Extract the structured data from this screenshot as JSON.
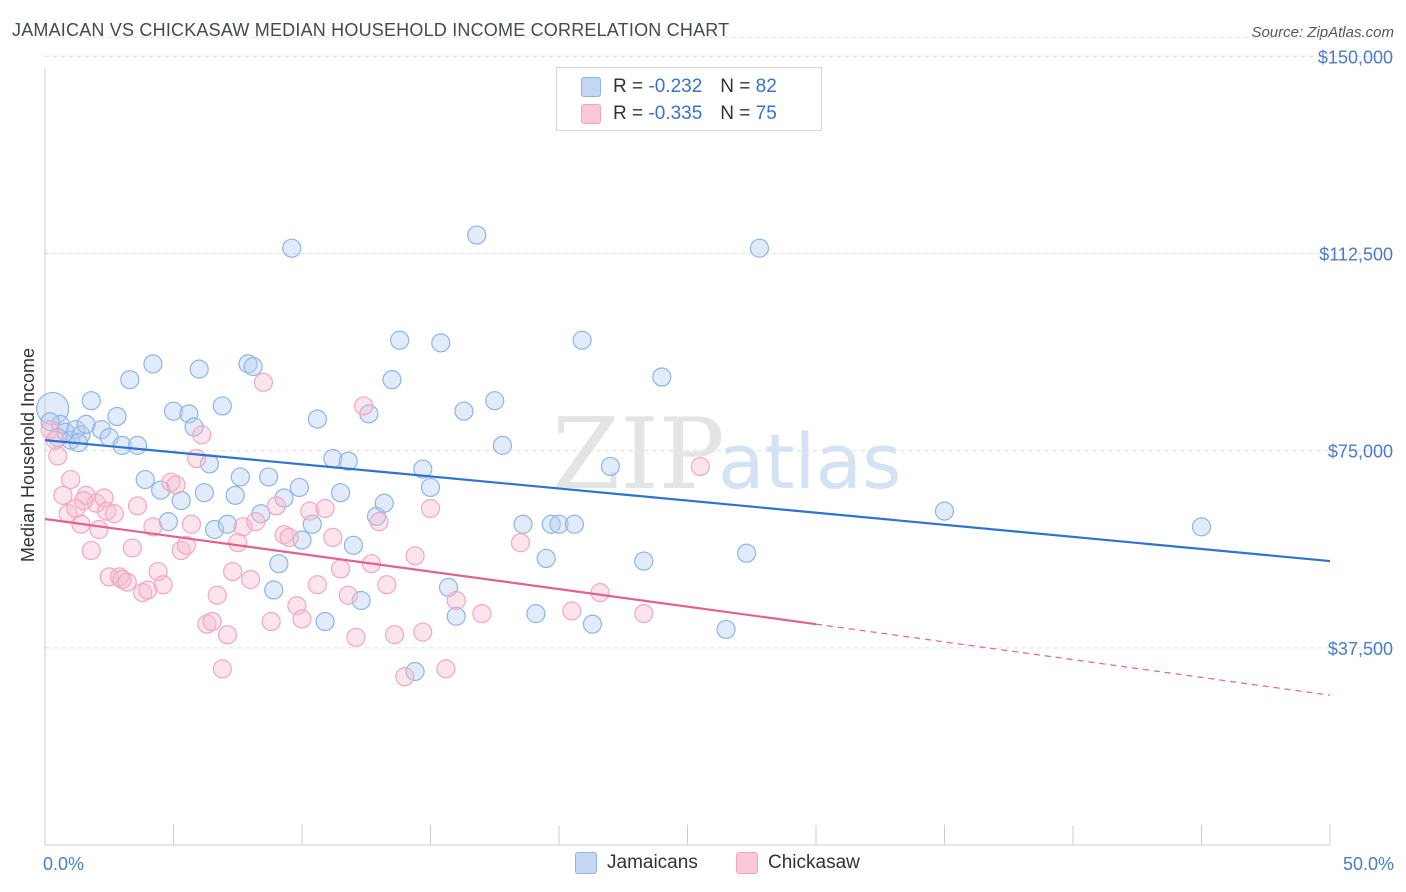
{
  "title": "JAMAICAN VS CHICKASAW MEDIAN HOUSEHOLD INCOME CORRELATION CHART",
  "source": "Source: ZipAtlas.com",
  "watermark": {
    "zip": "ZIP",
    "atlas": "atlas"
  },
  "legend": {
    "rows": [
      {
        "r_label": "R =",
        "r_value": "-0.232",
        "n_label": "N =",
        "n_value": "82"
      },
      {
        "r_label": "R =",
        "r_value": "-0.335",
        "n_label": "N =",
        "n_value": "75"
      }
    ]
  },
  "bottom_legend": {
    "jamaicans": "Jamaicans",
    "chickasaw": "Chickasaw"
  },
  "chart_data": {
    "type": "scatter",
    "title": "JAMAICAN VS CHICKASAW MEDIAN HOUSEHOLD INCOME CORRELATION CHART",
    "xlabel": "",
    "ylabel": "Median Household Income",
    "xlim": [
      0,
      50
    ],
    "ylim": [
      0,
      155000
    ],
    "x_tick_labels": [
      "0.0%",
      "50.0%"
    ],
    "y_tick_labels": [
      "$150,000",
      "$112,500",
      "$75,000",
      "$37,500"
    ],
    "y_tick_values": [
      150000,
      112500,
      75000,
      37500
    ],
    "grid": true,
    "series": [
      {
        "name": "Jamaicans",
        "color": "#8fb4e8",
        "trend_color": "#2e72d2",
        "trend": {
          "x": [
            0,
            50
          ],
          "y": [
            77000,
            54000
          ]
        },
        "points": [
          [
            0.3,
            83000
          ],
          [
            0.6,
            80000
          ],
          [
            0.8,
            78500
          ],
          [
            1.0,
            77000
          ],
          [
            1.2,
            79000
          ],
          [
            1.4,
            78000
          ],
          [
            1.6,
            80000
          ],
          [
            1.8,
            84500
          ],
          [
            2.2,
            79000
          ],
          [
            2.5,
            77500
          ],
          [
            2.8,
            81500
          ],
          [
            3.0,
            76000
          ],
          [
            3.3,
            88500
          ],
          [
            3.6,
            76000
          ],
          [
            3.9,
            69500
          ],
          [
            4.2,
            91500
          ],
          [
            4.5,
            67500
          ],
          [
            4.8,
            61500
          ],
          [
            5.0,
            82500
          ],
          [
            5.3,
            65500
          ],
          [
            5.6,
            82000
          ],
          [
            5.8,
            79500
          ],
          [
            6.0,
            90500
          ],
          [
            6.2,
            67000
          ],
          [
            6.4,
            72500
          ],
          [
            6.6,
            60000
          ],
          [
            6.9,
            83500
          ],
          [
            7.1,
            61000
          ],
          [
            7.4,
            66500
          ],
          [
            7.6,
            70000
          ],
          [
            7.9,
            91500
          ],
          [
            8.1,
            91000
          ],
          [
            8.4,
            63000
          ],
          [
            8.7,
            70000
          ],
          [
            8.9,
            48500
          ],
          [
            9.1,
            53500
          ],
          [
            9.3,
            66000
          ],
          [
            9.6,
            113500
          ],
          [
            9.9,
            68000
          ],
          [
            10.0,
            58000
          ],
          [
            10.4,
            61000
          ],
          [
            10.6,
            81000
          ],
          [
            10.9,
            42500
          ],
          [
            11.2,
            73500
          ],
          [
            11.5,
            67000
          ],
          [
            11.8,
            73000
          ],
          [
            12.0,
            57000
          ],
          [
            12.3,
            46500
          ],
          [
            12.6,
            82000
          ],
          [
            12.9,
            62500
          ],
          [
            13.2,
            65000
          ],
          [
            13.5,
            88500
          ],
          [
            13.8,
            96000
          ],
          [
            14.4,
            33000
          ],
          [
            14.7,
            71500
          ],
          [
            15.0,
            68000
          ],
          [
            15.4,
            95500
          ],
          [
            15.7,
            49000
          ],
          [
            16.0,
            43500
          ],
          [
            16.3,
            82500
          ],
          [
            16.8,
            116000
          ],
          [
            17.5,
            84500
          ],
          [
            17.8,
            76000
          ],
          [
            18.6,
            61000
          ],
          [
            19.1,
            44000
          ],
          [
            19.5,
            54500
          ],
          [
            19.7,
            61000
          ],
          [
            20.0,
            61000
          ],
          [
            20.6,
            61000
          ],
          [
            20.9,
            96000
          ],
          [
            21.3,
            42000
          ],
          [
            22.0,
            72000
          ],
          [
            23.3,
            54000
          ],
          [
            24.0,
            89000
          ],
          [
            26.5,
            41000
          ],
          [
            27.3,
            55500
          ],
          [
            27.8,
            113500
          ],
          [
            35.0,
            63500
          ],
          [
            45.0,
            60500
          ],
          [
            0.2,
            80500
          ],
          [
            0.5,
            77500
          ],
          [
            1.3,
            76500
          ]
        ]
      },
      {
        "name": "Chickasaw",
        "color": "#f2a7c0",
        "trend_color": "#e2628f",
        "trend": {
          "x": [
            0,
            30
          ],
          "y": [
            62000,
            42000
          ]
        },
        "trend_dashed": {
          "x": [
            30,
            50
          ],
          "y": [
            42000,
            28500
          ]
        },
        "points": [
          [
            0.2,
            79000
          ],
          [
            0.5,
            74000
          ],
          [
            0.7,
            66500
          ],
          [
            0.9,
            63000
          ],
          [
            1.0,
            69500
          ],
          [
            1.2,
            64000
          ],
          [
            1.4,
            61000
          ],
          [
            1.6,
            66500
          ],
          [
            1.8,
            56000
          ],
          [
            2.0,
            65000
          ],
          [
            2.1,
            60000
          ],
          [
            2.3,
            66000
          ],
          [
            2.4,
            63500
          ],
          [
            2.5,
            51000
          ],
          [
            2.7,
            63000
          ],
          [
            2.9,
            51000
          ],
          [
            3.0,
            50500
          ],
          [
            3.2,
            50000
          ],
          [
            3.4,
            56500
          ],
          [
            3.6,
            64500
          ],
          [
            3.8,
            48000
          ],
          [
            4.0,
            48500
          ],
          [
            4.2,
            60500
          ],
          [
            4.4,
            52000
          ],
          [
            4.6,
            49500
          ],
          [
            4.9,
            69000
          ],
          [
            5.1,
            68500
          ],
          [
            5.3,
            56000
          ],
          [
            5.5,
            57000
          ],
          [
            5.7,
            61000
          ],
          [
            5.9,
            73500
          ],
          [
            6.1,
            78000
          ],
          [
            6.3,
            42000
          ],
          [
            6.5,
            42500
          ],
          [
            6.7,
            47500
          ],
          [
            6.9,
            33500
          ],
          [
            7.1,
            40000
          ],
          [
            7.3,
            52000
          ],
          [
            7.5,
            57500
          ],
          [
            7.7,
            60500
          ],
          [
            8.0,
            50500
          ],
          [
            8.2,
            61500
          ],
          [
            8.5,
            88000
          ],
          [
            8.8,
            42500
          ],
          [
            9.0,
            64500
          ],
          [
            9.3,
            59000
          ],
          [
            9.5,
            58500
          ],
          [
            9.8,
            45500
          ],
          [
            10.0,
            43000
          ],
          [
            10.3,
            63500
          ],
          [
            10.6,
            49500
          ],
          [
            10.9,
            64000
          ],
          [
            11.2,
            58500
          ],
          [
            11.5,
            52500
          ],
          [
            11.8,
            47500
          ],
          [
            12.1,
            39500
          ],
          [
            12.4,
            83500
          ],
          [
            12.7,
            53500
          ],
          [
            13.0,
            61500
          ],
          [
            13.3,
            49500
          ],
          [
            13.6,
            40000
          ],
          [
            14.0,
            32000
          ],
          [
            14.4,
            55000
          ],
          [
            14.7,
            40500
          ],
          [
            15.0,
            64000
          ],
          [
            15.6,
            33500
          ],
          [
            16.0,
            46500
          ],
          [
            17.0,
            44000
          ],
          [
            18.5,
            57500
          ],
          [
            20.5,
            44500
          ],
          [
            21.6,
            48000
          ],
          [
            23.3,
            44000
          ],
          [
            25.5,
            72000
          ],
          [
            0.4,
            77000
          ],
          [
            1.5,
            65500
          ]
        ]
      }
    ]
  }
}
